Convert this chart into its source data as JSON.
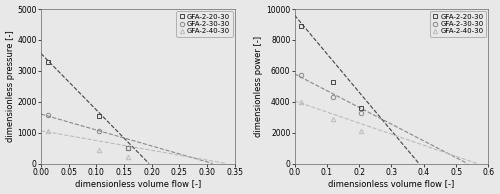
{
  "left_plot": {
    "xlabel": "dimensionless volume flow [-]",
    "ylabel": "dimensionless pressure [-]",
    "xlim": [
      0,
      0.35
    ],
    "ylim": [
      0,
      5000
    ],
    "xticks": [
      0.0,
      0.05,
      0.1,
      0.15,
      0.2,
      0.25,
      0.3,
      0.35
    ],
    "yticks": [
      0,
      1000,
      2000,
      3000,
      4000,
      5000
    ],
    "series": [
      {
        "label": "GFA-2-20-30",
        "marker": "s",
        "color": "#444444",
        "linestyle": "--",
        "data_x": [
          0.013,
          0.105,
          0.157
        ],
        "data_y": [
          3280,
          1530,
          490
        ],
        "fit_x": [
          0.0,
          0.195
        ],
        "fit_y": [
          3560,
          0
        ]
      },
      {
        "label": "GFA-2-30-30",
        "marker": "o",
        "color": "#888888",
        "linestyle": "--",
        "data_x": [
          0.013,
          0.105,
          0.157
        ],
        "data_y": [
          1570,
          1060,
          490
        ],
        "fit_x": [
          0.0,
          0.31
        ],
        "fit_y": [
          1600,
          0
        ]
      },
      {
        "label": "GFA-2-40-30",
        "marker": "^",
        "color": "#bbbbbb",
        "linestyle": "--",
        "data_x": [
          0.013,
          0.105,
          0.157
        ],
        "data_y": [
          1040,
          440,
          200
        ],
        "fit_x": [
          0.0,
          0.335
        ],
        "fit_y": [
          1060,
          0
        ]
      }
    ]
  },
  "right_plot": {
    "xlabel": "dimensionless volume flow [-]",
    "ylabel": "dimensionless power [-]",
    "xlim": [
      0,
      0.6
    ],
    "ylim": [
      0,
      10000
    ],
    "xticks": [
      0.0,
      0.1,
      0.2,
      0.3,
      0.4,
      0.5,
      0.6
    ],
    "yticks": [
      0,
      2000,
      4000,
      6000,
      8000,
      10000
    ],
    "series": [
      {
        "label": "GFA-2-20-30",
        "marker": "s",
        "color": "#444444",
        "linestyle": "--",
        "data_x": [
          0.02,
          0.12,
          0.205
        ],
        "data_y": [
          8900,
          5300,
          3600
        ],
        "fit_x": [
          0.0,
          0.385
        ],
        "fit_y": [
          9600,
          0
        ]
      },
      {
        "label": "GFA-2-30-30",
        "marker": "o",
        "color": "#888888",
        "linestyle": "--",
        "data_x": [
          0.02,
          0.12,
          0.205
        ],
        "data_y": [
          5750,
          4300,
          3300
        ],
        "fit_x": [
          0.0,
          0.535
        ],
        "fit_y": [
          5800,
          0
        ]
      },
      {
        "label": "GFA-2-40-30",
        "marker": "^",
        "color": "#bbbbbb",
        "linestyle": "--",
        "data_x": [
          0.02,
          0.12,
          0.205
        ],
        "data_y": [
          4000,
          2850,
          2100
        ],
        "fit_x": [
          0.0,
          0.565
        ],
        "fit_y": [
          4050,
          0
        ]
      }
    ]
  },
  "bg_color": "#e8e8e8",
  "fig_bg_color": "#e8e8e8",
  "font_size": 6.0,
  "legend_font_size": 5.0,
  "tick_font_size": 5.5
}
